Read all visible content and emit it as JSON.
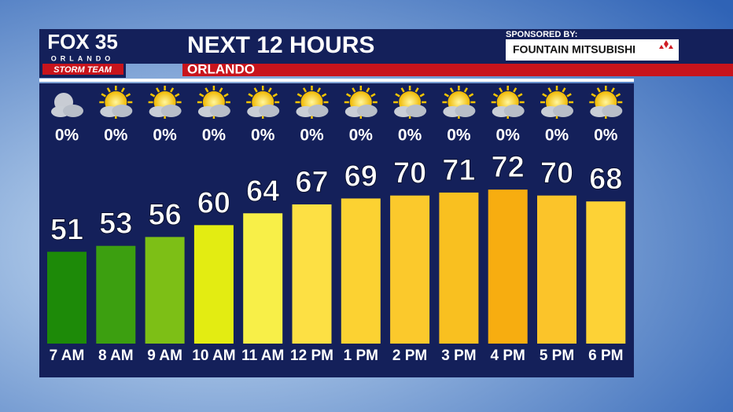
{
  "logo": {
    "network": "FOX 35",
    "city": "ORLANDO",
    "team": "STORM TEAM"
  },
  "sponsor": {
    "label": "SPONSORED BY:",
    "name": "FOUNTAIN MITSUBISHI"
  },
  "chart_data": {
    "type": "bar",
    "title": "NEXT 12 HOURS",
    "subtitle": "ORLANDO",
    "categories": [
      "7 AM",
      "8 AM",
      "9 AM",
      "10 AM",
      "11 AM",
      "12 PM",
      "1 PM",
      "2 PM",
      "3 PM",
      "4 PM",
      "5 PM",
      "6 PM"
    ],
    "values": [
      51,
      53,
      56,
      60,
      64,
      67,
      69,
      70,
      71,
      72,
      70,
      68
    ],
    "colors": [
      "#1d8a08",
      "#3c9f10",
      "#7dbf16",
      "#e3ec12",
      "#f8ef48",
      "#fde044",
      "#fcd232",
      "#fbc92c",
      "#f9c020",
      "#f7ad10",
      "#fbc42a",
      "#fdd236"
    ],
    "precip_chance": [
      0,
      0,
      0,
      0,
      0,
      0,
      0,
      0,
      0,
      0,
      0,
      0
    ],
    "precip_labels": [
      "0%",
      "0%",
      "0%",
      "0%",
      "0%",
      "0%",
      "0%",
      "0%",
      "0%",
      "0%",
      "0%",
      "0%"
    ],
    "ylim": [
      20,
      80
    ]
  }
}
